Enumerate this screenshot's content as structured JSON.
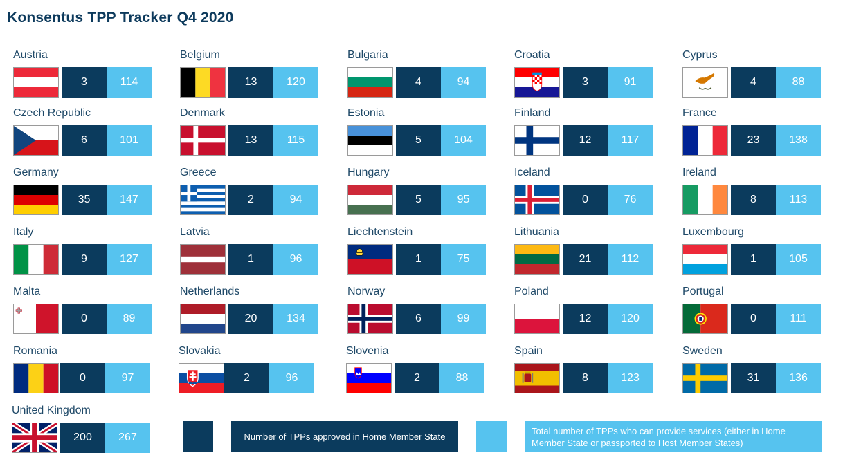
{
  "title": "Konsentus TPP Tracker Q4 2020",
  "colors": {
    "dark": "#0b3b5d",
    "light": "#56c3ef"
  },
  "countries": [
    {
      "name": "Austria",
      "home": "3",
      "total": "114",
      "flag": "austria-flag-icon"
    },
    {
      "name": "Belgium",
      "home": "13",
      "total": "120",
      "flag": "belgium-flag-icon"
    },
    {
      "name": "Bulgaria",
      "home": "4",
      "total": "94",
      "flag": "bulgaria-flag-icon"
    },
    {
      "name": "Croatia",
      "home": "3",
      "total": "91",
      "flag": "croatia-flag-icon"
    },
    {
      "name": "Cyprus",
      "home": "4",
      "total": "88",
      "flag": "cyprus-flag-icon"
    },
    {
      "name": "Czech Republic",
      "home": "6",
      "total": "101",
      "flag": "czech-republic-flag-icon"
    },
    {
      "name": "Denmark",
      "home": "13",
      "total": "115",
      "flag": "denmark-flag-icon"
    },
    {
      "name": "Estonia",
      "home": "5",
      "total": "104",
      "flag": "estonia-flag-icon"
    },
    {
      "name": "Finland",
      "home": "12",
      "total": "117",
      "flag": "finland-flag-icon"
    },
    {
      "name": "France",
      "home": "23",
      "total": "138",
      "flag": "france-flag-icon"
    },
    {
      "name": "Germany",
      "home": "35",
      "total": "147",
      "flag": "germany-flag-icon"
    },
    {
      "name": "Greece",
      "home": "2",
      "total": "94",
      "flag": "greece-flag-icon"
    },
    {
      "name": "Hungary",
      "home": "5",
      "total": "95",
      "flag": "hungary-flag-icon"
    },
    {
      "name": "Iceland",
      "home": "0",
      "total": "76",
      "flag": "iceland-flag-icon"
    },
    {
      "name": "Ireland",
      "home": "8",
      "total": "113",
      "flag": "ireland-flag-icon"
    },
    {
      "name": "Italy",
      "home": "9",
      "total": "127",
      "flag": "italy-flag-icon"
    },
    {
      "name": "Latvia",
      "home": "1",
      "total": "96",
      "flag": "latvia-flag-icon"
    },
    {
      "name": "Liechtenstein",
      "home": "1",
      "total": "75",
      "flag": "liechtenstein-flag-icon"
    },
    {
      "name": "Lithuania",
      "home": "21",
      "total": "112",
      "flag": "lithuania-flag-icon"
    },
    {
      "name": "Luxembourg",
      "home": "1",
      "total": "105",
      "flag": "luxembourg-flag-icon"
    },
    {
      "name": "Malta",
      "home": "0",
      "total": "89",
      "flag": "malta-flag-icon"
    },
    {
      "name": "Netherlands",
      "home": "20",
      "total": "134",
      "flag": "netherlands-flag-icon"
    },
    {
      "name": "Norway",
      "home": "6",
      "total": "99",
      "flag": "norway-flag-icon"
    },
    {
      "name": "Poland",
      "home": "12",
      "total": "120",
      "flag": "poland-flag-icon"
    },
    {
      "name": "Portugal",
      "home": "0",
      "total": "111",
      "flag": "portugal-flag-icon"
    },
    {
      "name": "Romania",
      "home": "0",
      "total": "97",
      "flag": "romania-flag-icon"
    },
    {
      "name": "Slovakia",
      "home": "2",
      "total": "96",
      "flag": "slovakia-flag-icon"
    },
    {
      "name": "Slovenia",
      "home": "2",
      "total": "88",
      "flag": "slovenia-flag-icon"
    },
    {
      "name": "Spain",
      "home": "8",
      "total": "123",
      "flag": "spain-flag-icon"
    },
    {
      "name": "Sweden",
      "home": "31",
      "total": "136",
      "flag": "sweden-flag-icon"
    },
    {
      "name": "United Kingdom",
      "home": "200",
      "total": "267",
      "flag": "united-kingdom-flag-icon"
    }
  ],
  "legend": {
    "home_label": "Number of TPPs approved in Home Member State",
    "total_label": "Total number of TPPs who can provide services (either in Home Member State or passported to Host Member States)"
  }
}
